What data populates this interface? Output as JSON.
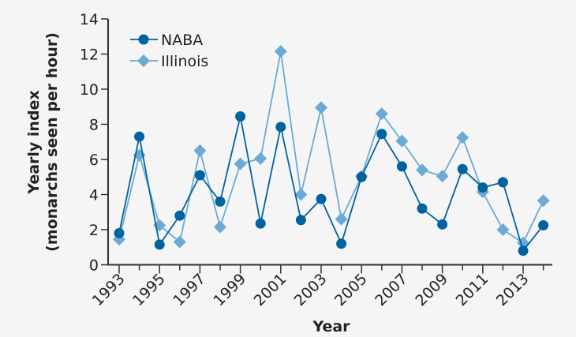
{
  "chart_data": {
    "type": "line",
    "title": "",
    "xlabel": "Year",
    "ylabel": "Yearly index",
    "ylabel_sub": "(monarchs seen per hour)",
    "ylim": [
      0,
      14
    ],
    "yticks": [
      "0",
      "2",
      "4",
      "6",
      "8",
      "10",
      "12",
      "14"
    ],
    "xlim": [
      1993,
      2014
    ],
    "xtick_labels": [
      "1993",
      "1995",
      "1997",
      "1999",
      "2001",
      "2003",
      "2005",
      "2007",
      "2009",
      "2011",
      "2013"
    ],
    "x": [
      1993,
      1994,
      1995,
      1996,
      1997,
      1998,
      1999,
      2000,
      2001,
      2002,
      2003,
      2004,
      2005,
      2006,
      2007,
      2008,
      2009,
      2010,
      2011,
      2012,
      2013,
      2014
    ],
    "legend_position": "top-left",
    "grid": false,
    "series": [
      {
        "name": "NABA",
        "color": "#00639f",
        "marker": "circle",
        "values": [
          1.8,
          7.3,
          1.15,
          2.8,
          5.1,
          3.6,
          8.45,
          2.35,
          7.85,
          2.55,
          3.75,
          1.2,
          5.0,
          7.45,
          5.6,
          3.2,
          2.3,
          5.45,
          4.4,
          4.7,
          0.8,
          2.25
        ]
      },
      {
        "name": "Illinois",
        "color": "#6aaad4",
        "marker": "diamond",
        "values": [
          1.45,
          6.25,
          2.25,
          1.3,
          6.5,
          2.15,
          5.75,
          6.05,
          12.15,
          4.0,
          8.95,
          2.6,
          5.05,
          8.6,
          7.05,
          5.4,
          5.05,
          7.25,
          4.15,
          2.0,
          1.25,
          3.65
        ]
      }
    ]
  }
}
